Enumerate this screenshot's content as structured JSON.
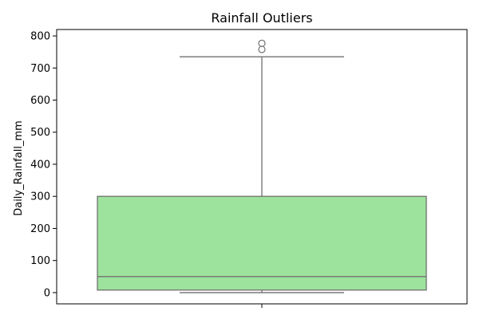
{
  "chart_data": {
    "type": "box",
    "title": "Rainfall Outliers",
    "ylabel": "Daily_Rainfall_mm",
    "xlabel": "",
    "ylim": [
      -35,
      820
    ],
    "yticks": [
      0,
      100,
      200,
      300,
      400,
      500,
      600,
      700,
      800
    ],
    "grid": false,
    "box": {
      "min": 0,
      "q1": 8,
      "median": 50,
      "q3": 300,
      "max": 735,
      "outliers": [
        758,
        777
      ]
    },
    "colors": {
      "box_fill": "#9de39d",
      "line": "#707070",
      "outlier_edge": "#707070"
    }
  }
}
